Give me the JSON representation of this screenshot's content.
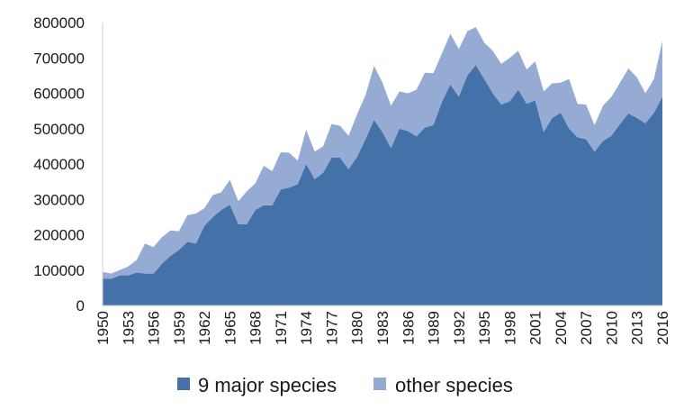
{
  "chart_data": {
    "type": "area",
    "stacked": true,
    "title": "",
    "xlabel": "",
    "ylabel": "",
    "ylim": [
      0,
      800000
    ],
    "yticks": [
      0,
      100000,
      200000,
      300000,
      400000,
      500000,
      600000,
      700000,
      800000
    ],
    "xlim": [
      1950,
      2016
    ],
    "xtick_labels": [
      "1950",
      "1953",
      "1956",
      "1959",
      "1962",
      "1965",
      "1968",
      "1971",
      "1974",
      "1977",
      "1980",
      "1983",
      "1986",
      "1989",
      "1992",
      "1995",
      "1998",
      "2001",
      "2004",
      "2007",
      "2010",
      "2013",
      "2016"
    ],
    "grid": false,
    "legend_position": "bottom",
    "x": [
      1950,
      1951,
      1952,
      1953,
      1954,
      1955,
      1956,
      1957,
      1958,
      1959,
      1960,
      1961,
      1962,
      1963,
      1964,
      1965,
      1966,
      1967,
      1968,
      1969,
      1970,
      1971,
      1972,
      1973,
      1974,
      1975,
      1976,
      1977,
      1978,
      1979,
      1980,
      1981,
      1982,
      1983,
      1984,
      1985,
      1986,
      1987,
      1988,
      1989,
      1990,
      1991,
      1992,
      1993,
      1994,
      1995,
      1996,
      1997,
      1998,
      1999,
      2000,
      2001,
      2002,
      2003,
      2004,
      2005,
      2006,
      2007,
      2008,
      2009,
      2010,
      2011,
      2012,
      2013,
      2014,
      2015,
      2016
    ],
    "series": [
      {
        "name": "9 major species",
        "color": "#4472a8",
        "values": [
          75000,
          75000,
          85000,
          85000,
          93000,
          90000,
          90000,
          118000,
          140000,
          157000,
          180000,
          175000,
          225000,
          250000,
          270000,
          285000,
          230000,
          230000,
          270000,
          283000,
          283000,
          328000,
          333000,
          343000,
          400000,
          357000,
          375000,
          418000,
          418000,
          385000,
          420000,
          470000,
          525000,
          490000,
          445000,
          500000,
          493000,
          478000,
          503000,
          510000,
          575000,
          625000,
          590000,
          650000,
          680000,
          640000,
          600000,
          568000,
          577000,
          610000,
          570000,
          580000,
          490000,
          530000,
          545000,
          500000,
          475000,
          470000,
          435000,
          465000,
          480000,
          513000,
          543000,
          530000,
          515000,
          545000,
          590000
        ]
      },
      {
        "name": "other species",
        "color": "#95abd4",
        "values": [
          20000,
          15000,
          15000,
          25000,
          35000,
          85000,
          75000,
          75000,
          72000,
          53000,
          75000,
          85000,
          50000,
          62000,
          50000,
          70000,
          65000,
          93000,
          75000,
          112000,
          97000,
          105000,
          99000,
          67000,
          97000,
          78000,
          75000,
          95000,
          90000,
          95000,
          120000,
          125000,
          152000,
          140000,
          120000,
          105000,
          107000,
          132000,
          155000,
          147000,
          137000,
          143000,
          135000,
          125000,
          107000,
          103000,
          120000,
          115000,
          123000,
          110000,
          97000,
          110000,
          115000,
          98000,
          85000,
          140000,
          95000,
          98000,
          75000,
          100000,
          110000,
          117000,
          127000,
          115000,
          85000,
          95000,
          158000
        ]
      }
    ]
  }
}
